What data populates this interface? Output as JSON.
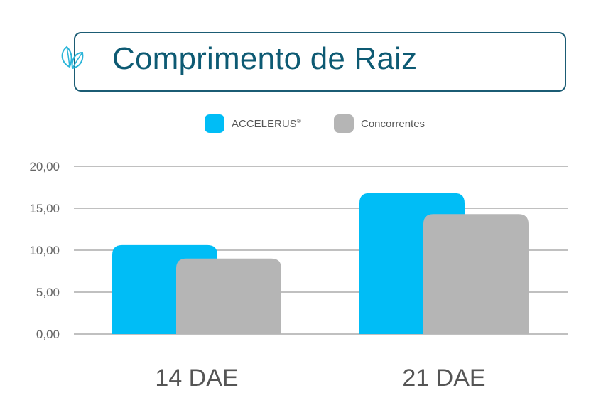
{
  "title": "Comprimento de Raiz",
  "colors": {
    "accent": "#1b5c74",
    "title_text": "#0d5a73",
    "series_1": "#00bdf6",
    "series_2": "#b5b5b5",
    "grid": "#9a9a9a"
  },
  "icons": {
    "title_icon": "leaf-icon"
  },
  "chart_data": {
    "type": "bar",
    "title": "Comprimento de Raiz",
    "categories": [
      "14 DAE",
      "21 DAE"
    ],
    "series": [
      {
        "name": "ACCELERUS",
        "name_mark": "®",
        "values": [
          10.6,
          16.8
        ]
      },
      {
        "name": "Concorrentes",
        "values": [
          9.0,
          14.3
        ]
      }
    ],
    "yticks": [
      "0,00",
      "5,00",
      "10,00",
      "15,00",
      "20,00"
    ],
    "ylim": [
      0,
      20
    ],
    "grid": true,
    "legend_position": "top-center",
    "xlabel": "",
    "ylabel": ""
  }
}
